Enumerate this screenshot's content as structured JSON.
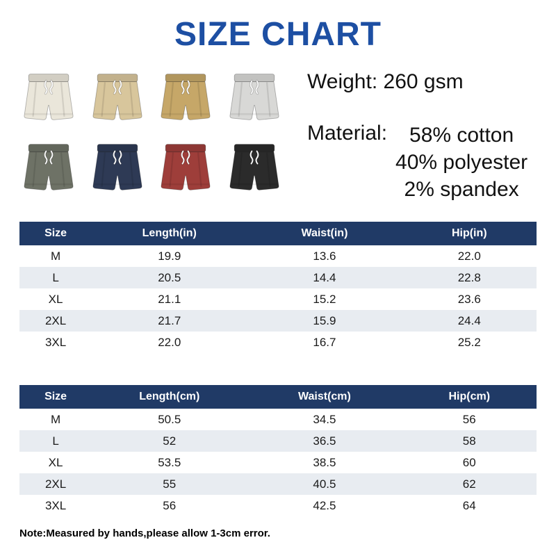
{
  "title": "SIZE CHART",
  "specs": {
    "weight_label": "Weight:",
    "weight_value": "260 gsm",
    "material_label": "Material:",
    "material_lines": [
      "58% cotton",
      "40% polyester",
      "2% spandex"
    ]
  },
  "products": {
    "items": [
      {
        "name": "cream-shorts",
        "color": "#eae6da"
      },
      {
        "name": "khaki-shorts",
        "color": "#d8c69c"
      },
      {
        "name": "tan-shorts",
        "color": "#c6a768"
      },
      {
        "name": "light-gray-shorts",
        "color": "#d8d8d6"
      },
      {
        "name": "olive-gray-shorts",
        "color": "#6e7266"
      },
      {
        "name": "navy-shorts",
        "color": "#2e3a55"
      },
      {
        "name": "maroon-shorts",
        "color": "#9e3e3a"
      },
      {
        "name": "black-shorts",
        "color": "#2b2b2b"
      }
    ],
    "drawstring_color": "#f7f7f7"
  },
  "table_inches": {
    "headers": [
      "Size",
      "Length(in)",
      "Waist(in)",
      "Hip(in)"
    ],
    "rows": [
      [
        "M",
        "19.9",
        "13.6",
        "22.0"
      ],
      [
        "L",
        "20.5",
        "14.4",
        "22.8"
      ],
      [
        "XL",
        "21.1",
        "15.2",
        "23.6"
      ],
      [
        "2XL",
        "21.7",
        "15.9",
        "24.4"
      ],
      [
        "3XL",
        "22.0",
        "16.7",
        "25.2"
      ]
    ]
  },
  "table_cm": {
    "headers": [
      "Size",
      "Length(cm)",
      "Waist(cm)",
      "Hip(cm)"
    ],
    "rows": [
      [
        "M",
        "50.5",
        "34.5",
        "56"
      ],
      [
        "L",
        "52",
        "36.5",
        "58"
      ],
      [
        "XL",
        "53.5",
        "38.5",
        "60"
      ],
      [
        "2XL",
        "55",
        "40.5",
        "62"
      ],
      [
        "3XL",
        "56",
        "42.5",
        "64"
      ]
    ]
  },
  "note": "Note:Measured by hands,please allow 1-3cm error.",
  "colors": {
    "title": "#1d4fa3",
    "table_header_bg": "#203a66",
    "table_header_text": "#ffffff",
    "row_alt_bg": "#e8ecf1"
  }
}
